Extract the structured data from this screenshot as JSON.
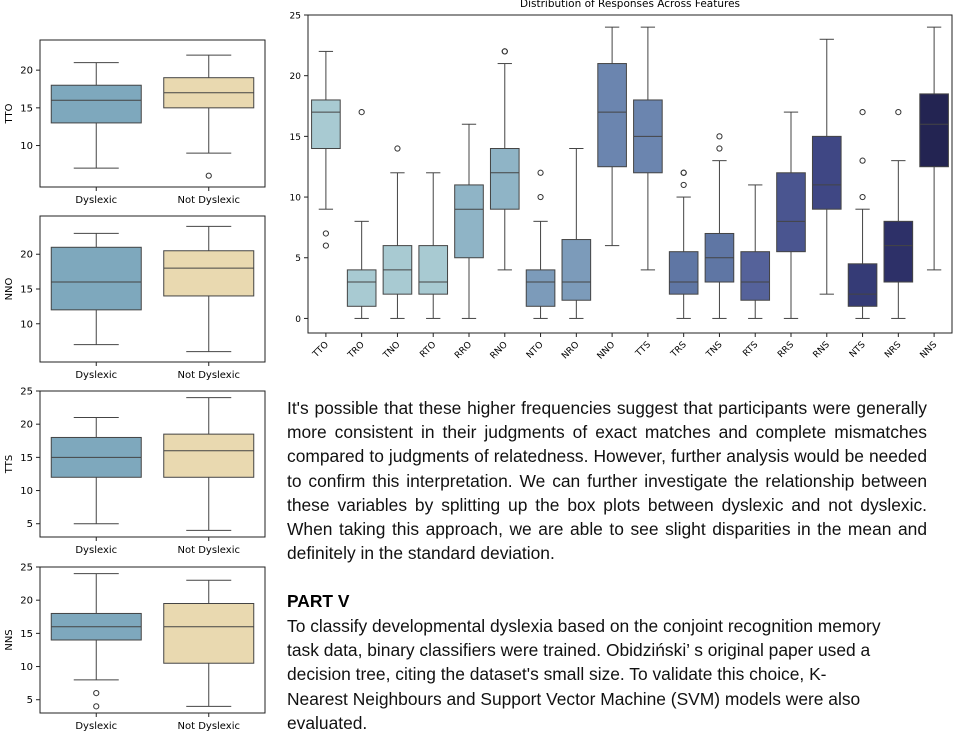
{
  "chart_data": [
    {
      "type": "box",
      "ylabel": "TTO",
      "categories": [
        "Dyslexic",
        "Not Dyslexic"
      ],
      "yticks": [
        10,
        15,
        20
      ],
      "ylim": [
        4.5,
        24
      ],
      "colors": [
        "#7ea8bd",
        "#e9d9b0"
      ],
      "boxes": [
        {
          "whislo": 7,
          "q1": 13,
          "med": 16,
          "q3": 18,
          "whishi": 21,
          "fliers": []
        },
        {
          "whislo": 9,
          "q1": 15,
          "med": 17,
          "q3": 19,
          "whishi": 22,
          "fliers": [
            6
          ]
        }
      ]
    },
    {
      "type": "box",
      "ylabel": "NNO",
      "categories": [
        "Dyslexic",
        "Not Dyslexic"
      ],
      "yticks": [
        10,
        15,
        20
      ],
      "ylim": [
        4.5,
        25.5
      ],
      "colors": [
        "#7ea8bd",
        "#e9d9b0"
      ],
      "boxes": [
        {
          "whislo": 7,
          "q1": 12,
          "med": 16,
          "q3": 21,
          "whishi": 23,
          "fliers": []
        },
        {
          "whislo": 6,
          "q1": 14,
          "med": 18,
          "q3": 20.5,
          "whishi": 24,
          "fliers": []
        }
      ]
    },
    {
      "type": "box",
      "ylabel": "TTS",
      "categories": [
        "Dyslexic",
        "Not Dyslexic"
      ],
      "yticks": [
        5,
        10,
        15,
        20,
        25
      ],
      "ylim": [
        3,
        25
      ],
      "colors": [
        "#7ea8bd",
        "#e9d9b0"
      ],
      "boxes": [
        {
          "whislo": 5,
          "q1": 12,
          "med": 15,
          "q3": 18,
          "whishi": 21,
          "fliers": []
        },
        {
          "whislo": 4,
          "q1": 12,
          "med": 16,
          "q3": 18.5,
          "whishi": 24,
          "fliers": []
        }
      ]
    },
    {
      "type": "box",
      "ylabel": "NNS",
      "categories": [
        "Dyslexic",
        "Not Dyslexic"
      ],
      "yticks": [
        5,
        10,
        15,
        20,
        25
      ],
      "ylim": [
        3,
        25
      ],
      "colors": [
        "#7ea8bd",
        "#e9d9b0"
      ],
      "boxes": [
        {
          "whislo": 8,
          "q1": 14,
          "med": 16,
          "q3": 18,
          "whishi": 24,
          "fliers": [
            6,
            4
          ]
        },
        {
          "whislo": 4,
          "q1": 10.5,
          "med": 16,
          "q3": 19.5,
          "whishi": 23,
          "fliers": []
        }
      ]
    },
    {
      "type": "box",
      "title": "Distribution of Responses Across Features",
      "categories": [
        "TTO",
        "TRO",
        "TNO",
        "RTO",
        "RRO",
        "RNO",
        "NTO",
        "NRO",
        "NNO",
        "TTS",
        "TRS",
        "TNS",
        "RTS",
        "RRS",
        "RNS",
        "NTS",
        "NRS",
        "NNS"
      ],
      "yticks": [
        0,
        5,
        10,
        15,
        20,
        25
      ],
      "ylim": [
        -1.2,
        25
      ],
      "colors": [
        "#a8cad2",
        "#a8cad2",
        "#a8cad2",
        "#a8cad2",
        "#8fb4c6",
        "#8fb4c6",
        "#7c9bba",
        "#7c9bba",
        "#6b85af",
        "#6b85af",
        "#5f76a4",
        "#5f76a4",
        "#55629a",
        "#4a5590",
        "#3f4784",
        "#353b76",
        "#2d3068",
        "#232452"
      ],
      "boxes": [
        {
          "whislo": 9,
          "q1": 14,
          "med": 17,
          "q3": 18,
          "whishi": 22,
          "fliers": [
            7,
            6
          ]
        },
        {
          "whislo": 0,
          "q1": 1,
          "med": 3,
          "q3": 4,
          "whishi": 8,
          "fliers": [
            17
          ]
        },
        {
          "whislo": 0,
          "q1": 2,
          "med": 4,
          "q3": 6,
          "whishi": 12,
          "fliers": [
            14
          ]
        },
        {
          "whislo": 0,
          "q1": 2,
          "med": 3,
          "q3": 6,
          "whishi": 12,
          "fliers": []
        },
        {
          "whislo": 0,
          "q1": 5,
          "med": 9,
          "q3": 11,
          "whishi": 16,
          "fliers": []
        },
        {
          "whislo": 4,
          "q1": 9,
          "med": 12,
          "q3": 14,
          "whishi": 21,
          "fliers": [
            22,
            22
          ]
        },
        {
          "whislo": 0,
          "q1": 1,
          "med": 3,
          "q3": 4,
          "whishi": 8,
          "fliers": [
            12,
            10
          ]
        },
        {
          "whislo": 0,
          "q1": 1.5,
          "med": 3,
          "q3": 6.5,
          "whishi": 14,
          "fliers": []
        },
        {
          "whislo": 6,
          "q1": 12.5,
          "med": 17,
          "q3": 21,
          "whishi": 24,
          "fliers": []
        },
        {
          "whislo": 4,
          "q1": 12,
          "med": 15,
          "q3": 18,
          "whishi": 24,
          "fliers": []
        },
        {
          "whislo": 0,
          "q1": 2,
          "med": 3,
          "q3": 5.5,
          "whishi": 10,
          "fliers": [
            12,
            11,
            12
          ]
        },
        {
          "whislo": 0,
          "q1": 3,
          "med": 5,
          "q3": 7,
          "whishi": 13,
          "fliers": [
            14,
            15
          ]
        },
        {
          "whislo": 0,
          "q1": 1.5,
          "med": 3,
          "q3": 5.5,
          "whishi": 11,
          "fliers": []
        },
        {
          "whislo": 0,
          "q1": 5.5,
          "med": 8,
          "q3": 12,
          "whishi": 17,
          "fliers": []
        },
        {
          "whislo": 2,
          "q1": 9,
          "med": 11,
          "q3": 15,
          "whishi": 23,
          "fliers": []
        },
        {
          "whislo": 0,
          "q1": 1,
          "med": 2,
          "q3": 4.5,
          "whishi": 9,
          "fliers": [
            10,
            13,
            17
          ]
        },
        {
          "whislo": 0,
          "q1": 3,
          "med": 6,
          "q3": 8,
          "whishi": 13,
          "fliers": [
            17
          ]
        },
        {
          "whislo": 4,
          "q1": 12.5,
          "med": 16,
          "q3": 18.5,
          "whishi": 24,
          "fliers": []
        }
      ]
    }
  ],
  "text": {
    "paragraph1": "It's possible that these higher frequencies suggest that participants were generally more consistent in their judgments of exact matches and complete mismatches compared to judgments of relatedness. However, further analysis would be needed to confirm this interpretation. We can further investigate the relationship between these variables by splitting up the box plots between dyslexic and not dyslexic. When taking this approach, we are able to see slight disparities in the mean and definitely in the standard deviation.",
    "heading": "PART V",
    "paragraph2": "To classify developmental dyslexia based on the conjoint recognition memory task data, binary classifiers were trained. Obidziński’ s original paper used a decision tree, citing the dataset's small size. To validate this choice, K-Nearest Neighbours and Support Vector Machine (SVM) models were also evaluated."
  }
}
